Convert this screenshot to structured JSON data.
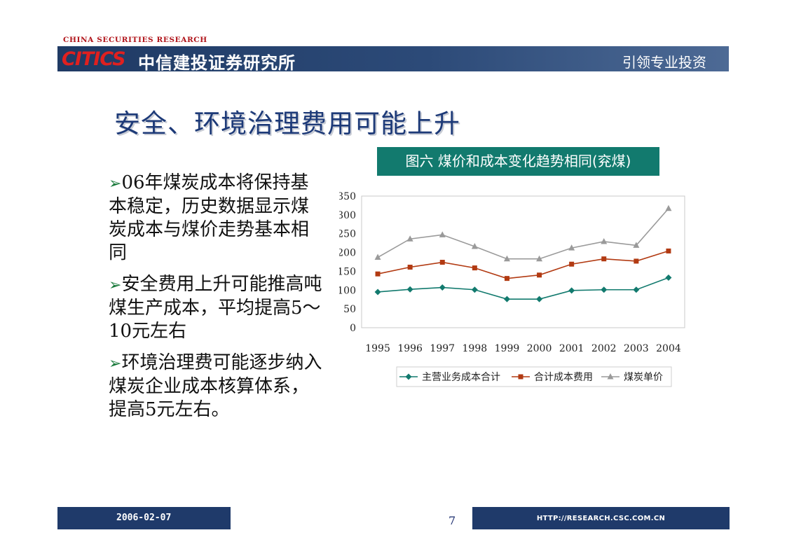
{
  "header": {
    "tag": "CHINA SECURITIES RESEARCH",
    "logo": "CITICS",
    "company": "中信建投证券研究所",
    "slogan": "引领专业投资"
  },
  "title": "安全、环境治理费用可能上升",
  "bullets": [
    {
      "marker": "➢",
      "text": "06年煤炭成本将保持基本稳定，历史数据显示煤炭成本与煤价走势基本相同"
    },
    {
      "marker": "➢",
      "text": "安全费用上升可能推高吨煤生产成本，平均提高5～10元左右"
    },
    {
      "marker": "➢",
      "text": "环境治理费可能逐步纳入煤炭企业成本核算体系，提高5元左右。"
    }
  ],
  "chart_caption": "图六 煤价和成本变化趋势相同(兖煤)",
  "chart_data": {
    "type": "line",
    "categories": [
      "1995",
      "1996",
      "1997",
      "1998",
      "1999",
      "2000",
      "2001",
      "2002",
      "2003",
      "2004"
    ],
    "series": [
      {
        "name": "主营业务成本合计",
        "marker": "diamond",
        "color": "#127a6e",
        "values": [
          95,
          102,
          107,
          101,
          76,
          76,
          99,
          101,
          101,
          133
        ]
      },
      {
        "name": "合计成本费用",
        "marker": "square",
        "color": "#b23a12",
        "values": [
          143,
          161,
          174,
          159,
          131,
          140,
          169,
          183,
          177,
          204
        ]
      },
      {
        "name": "煤炭单价",
        "marker": "triangle",
        "color": "#9a9a9a",
        "values": [
          187,
          236,
          247,
          216,
          183,
          183,
          212,
          229,
          219,
          317
        ]
      }
    ],
    "yticks": [
      "0",
      "50",
      "100",
      "150",
      "200",
      "250",
      "300",
      "350"
    ],
    "ylim": [
      0,
      350
    ],
    "grid": false,
    "legend_position": "bottom"
  },
  "footer": {
    "date": "2006-02-07",
    "page": "7",
    "url": "HTTP://RESEARCH.CSC.COM.CN"
  }
}
